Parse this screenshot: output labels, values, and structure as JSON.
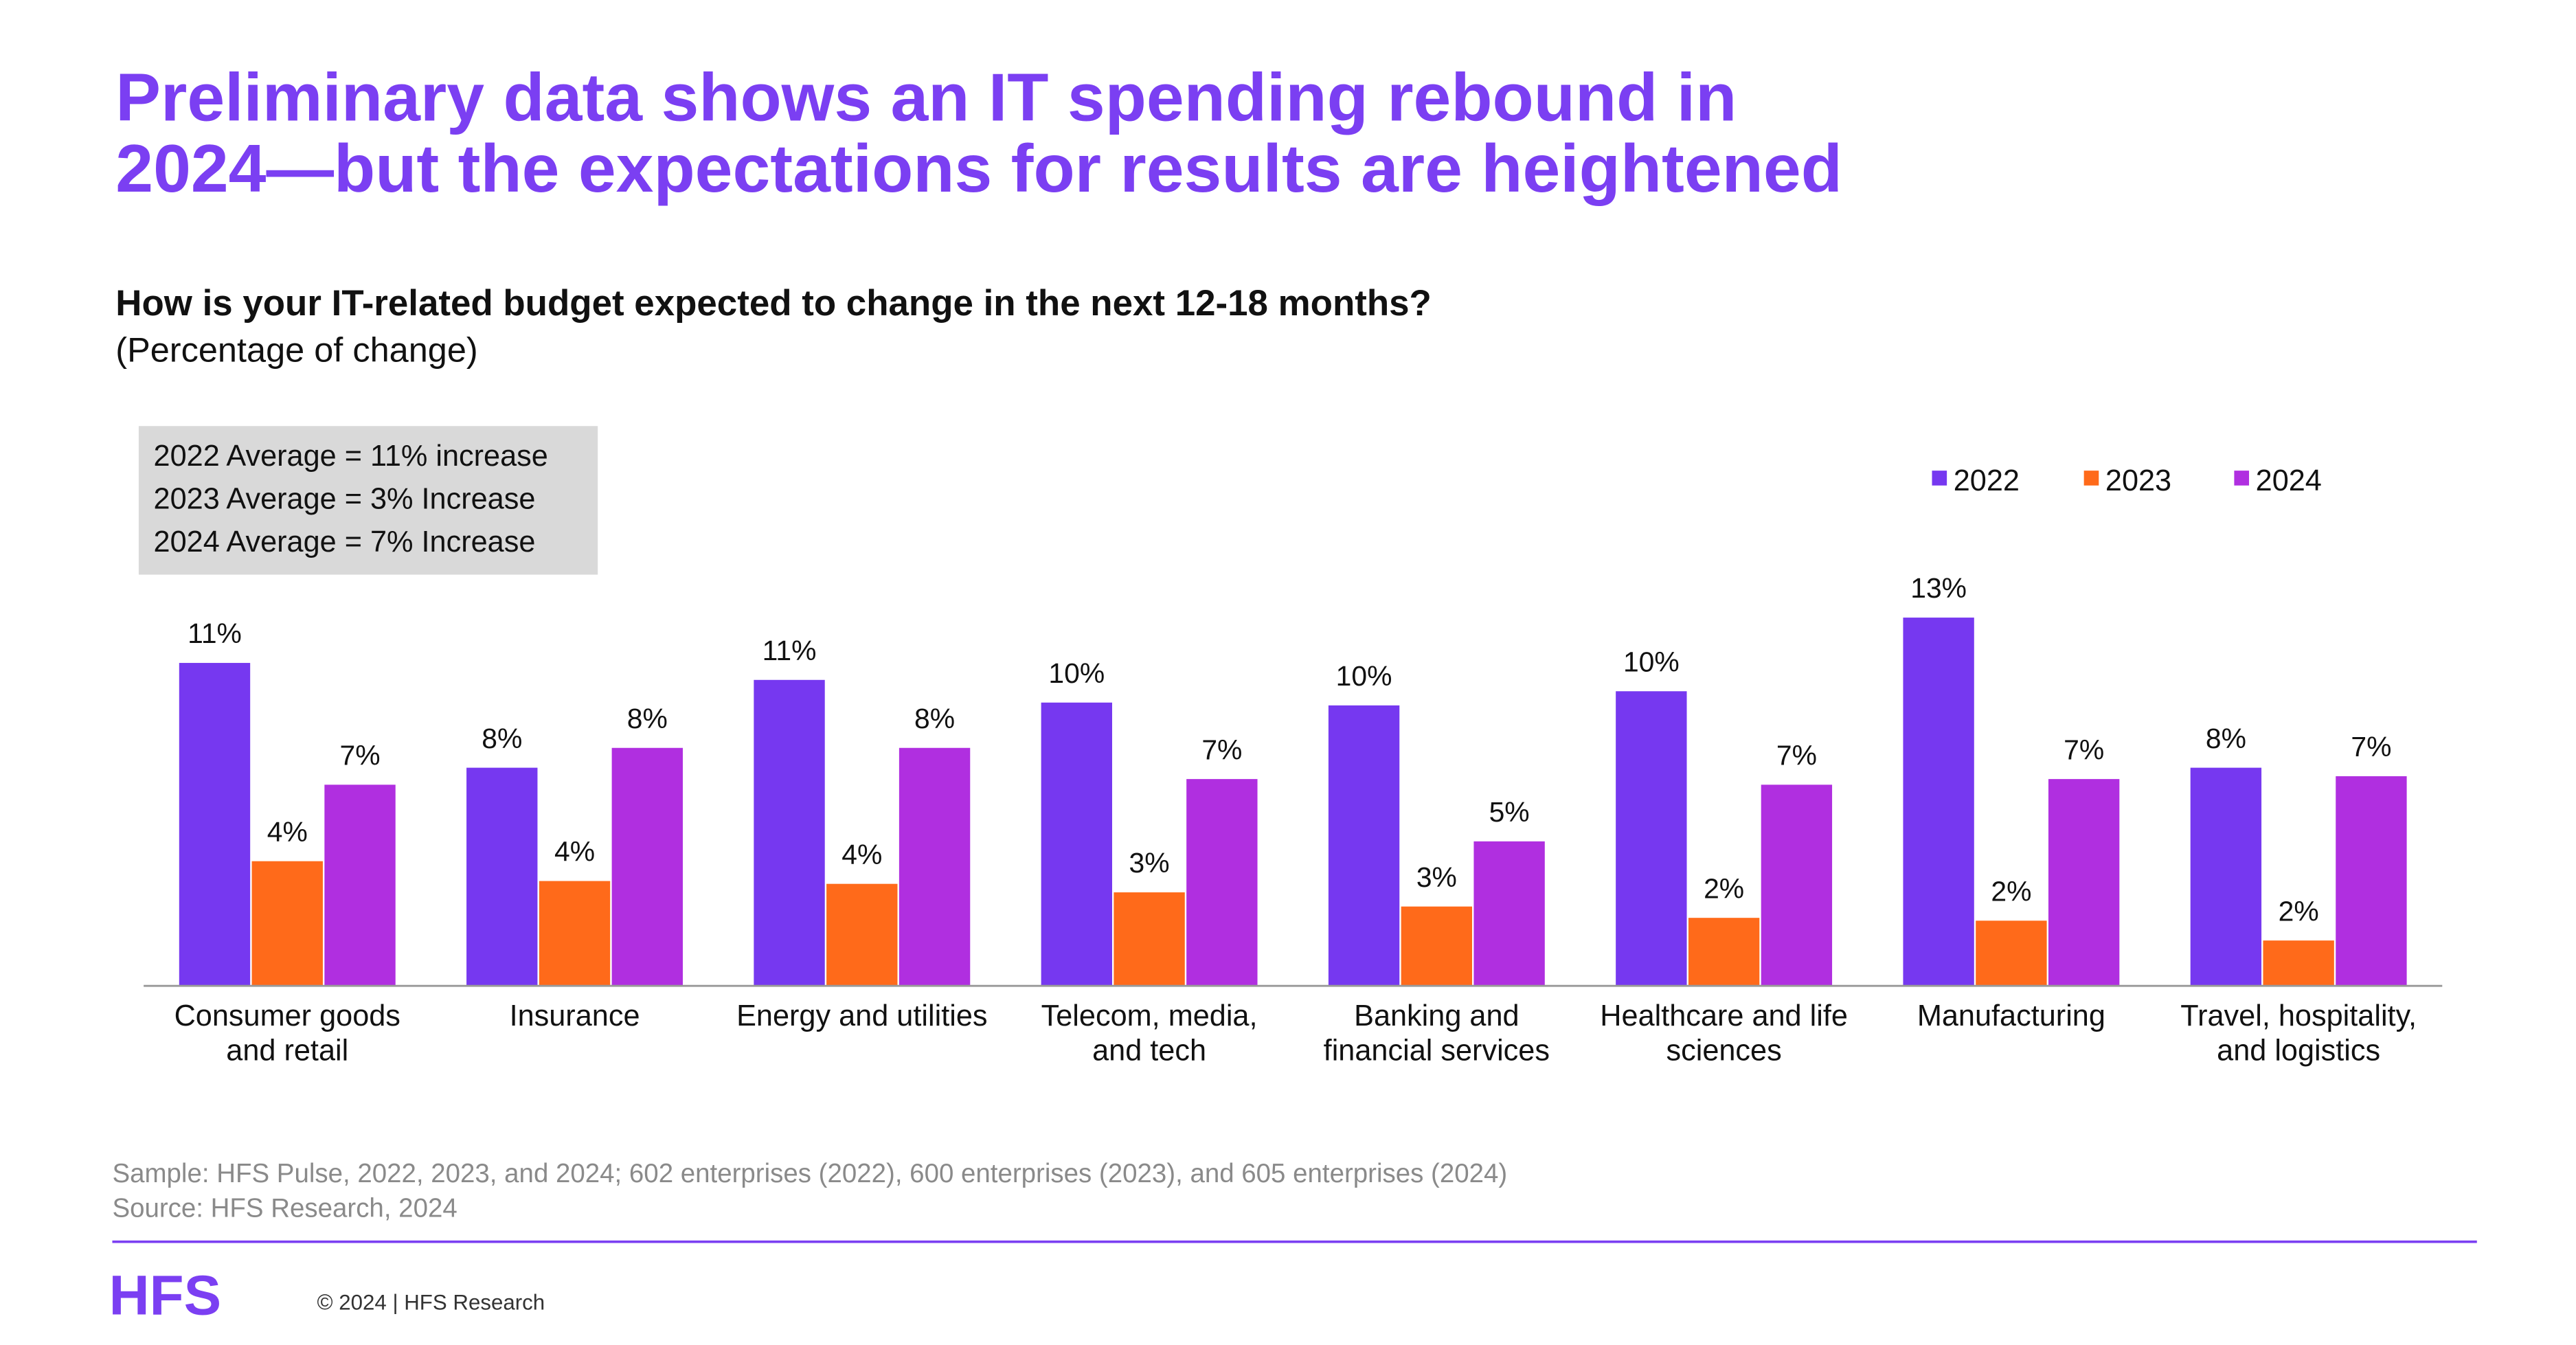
{
  "chart_data": {
    "type": "bar",
    "title": [
      "Preliminary data shows an IT spending rebound in",
      "2024—but the expectations for results are heightened"
    ],
    "subtitle": "How is your IT-related budget expected to change in the next 12-18 months?",
    "subtitle_note": "(Percentage of change)",
    "annotations": [
      "2022 Average = 11% increase",
      "2023 Average = 3% Increase",
      "2024 Average = 7% Increase"
    ],
    "categories": [
      "Consumer goods\nand retail",
      "Insurance",
      "Energy and utilities",
      "Telecom, media,\nand tech",
      "Banking and\nfinancial services",
      "Healthcare and life\nsciences",
      "Manufacturing",
      "Travel, hospitality,\nand logistics"
    ],
    "series": [
      {
        "name": "2022",
        "color": "#7638f0",
        "values": [
          11.4,
          7.7,
          10.8,
          10.0,
          9.9,
          10.4,
          13,
          7.7
        ],
        "value_labels": [
          "11%",
          "8%",
          "11%",
          "10%",
          "10%",
          "10%",
          "13%",
          "8%"
        ]
      },
      {
        "name": "2023",
        "color": "#ff6a1a",
        "values": [
          4.4,
          3.7,
          3.6,
          3.3,
          2.8,
          2.4,
          2.3,
          1.6
        ],
        "value_labels": [
          "4%",
          "4%",
          "4%",
          "3%",
          "3%",
          "2%",
          "2%",
          "2%"
        ]
      },
      {
        "name": "2024",
        "color": "#b02fe0",
        "values": [
          7.1,
          8.4,
          8.4,
          7.3,
          5.1,
          7.1,
          7.3,
          7.4
        ],
        "value_labels": [
          "7%",
          "8%",
          "8%",
          "7%",
          "5%",
          "7%",
          "7%",
          "7%"
        ]
      }
    ],
    "ylim": [
      0,
      13
    ],
    "legend": "top-right",
    "footnotes": [
      "Sample: HFS Pulse, 2022, 2023, and 2024; 602 enterprises (2022), 600 enterprises (2023), and 605 enterprises (2024)",
      "Source: HFS Research, 2024"
    ],
    "logo": "HFS",
    "copyright": "© 2024 | HFS Research"
  }
}
